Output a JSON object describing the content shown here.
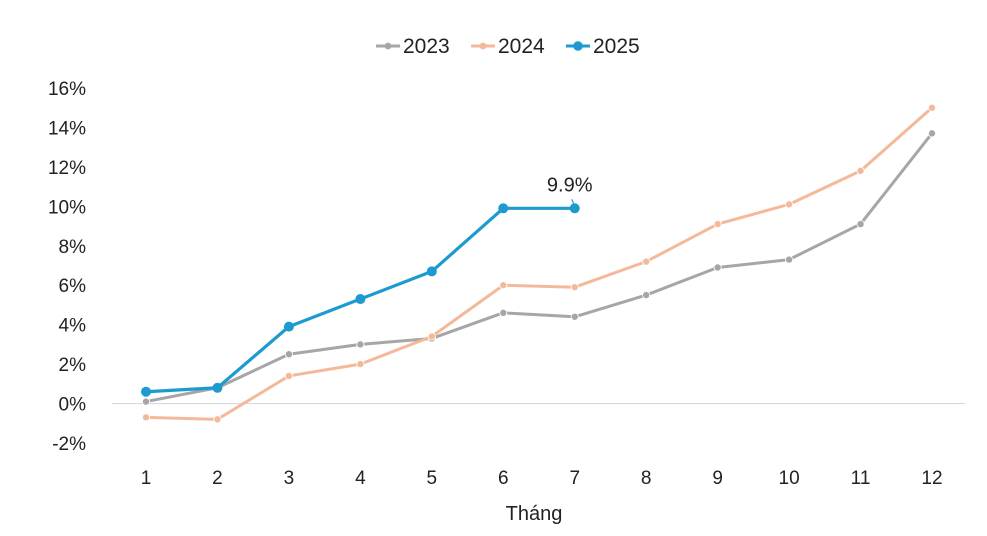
{
  "chart_data": {
    "type": "line",
    "title": "",
    "xlabel": "Tháng",
    "ylabel": "",
    "x": [
      1,
      2,
      3,
      4,
      5,
      6,
      7,
      8,
      9,
      10,
      11,
      12
    ],
    "x_tick_labels": [
      "1",
      "2",
      "3",
      "4",
      "5",
      "6",
      "7",
      "8",
      "9",
      "10",
      "11",
      "12"
    ],
    "ylim": [
      -2,
      16
    ],
    "y_ticks": [
      -2,
      0,
      2,
      4,
      6,
      8,
      10,
      12,
      14,
      16
    ],
    "y_tick_labels": [
      "-2%",
      "0%",
      "2%",
      "4%",
      "6%",
      "8%",
      "10%",
      "12%",
      "14%",
      "16%"
    ],
    "grid": false,
    "legend_position": "top",
    "series": [
      {
        "name": "2023",
        "color": "#a6a6a6",
        "values": [
          0.1,
          0.8,
          2.5,
          3.0,
          3.3,
          4.6,
          4.4,
          5.5,
          6.9,
          7.3,
          9.1,
          13.7
        ]
      },
      {
        "name": "2024",
        "color": "#f4b99a",
        "values": [
          -0.7,
          -0.8,
          1.4,
          2.0,
          3.4,
          6.0,
          5.9,
          7.2,
          9.1,
          10.1,
          11.8,
          15.0
        ]
      },
      {
        "name": "2025",
        "color": "#1d9bd0",
        "values": [
          0.6,
          0.8,
          3.9,
          5.3,
          6.7,
          9.9,
          9.9,
          null,
          null,
          null,
          null,
          null
        ]
      }
    ],
    "annotations": [
      {
        "series": "2025",
        "x": 7,
        "y": 9.9,
        "text": "9.9%"
      }
    ]
  }
}
